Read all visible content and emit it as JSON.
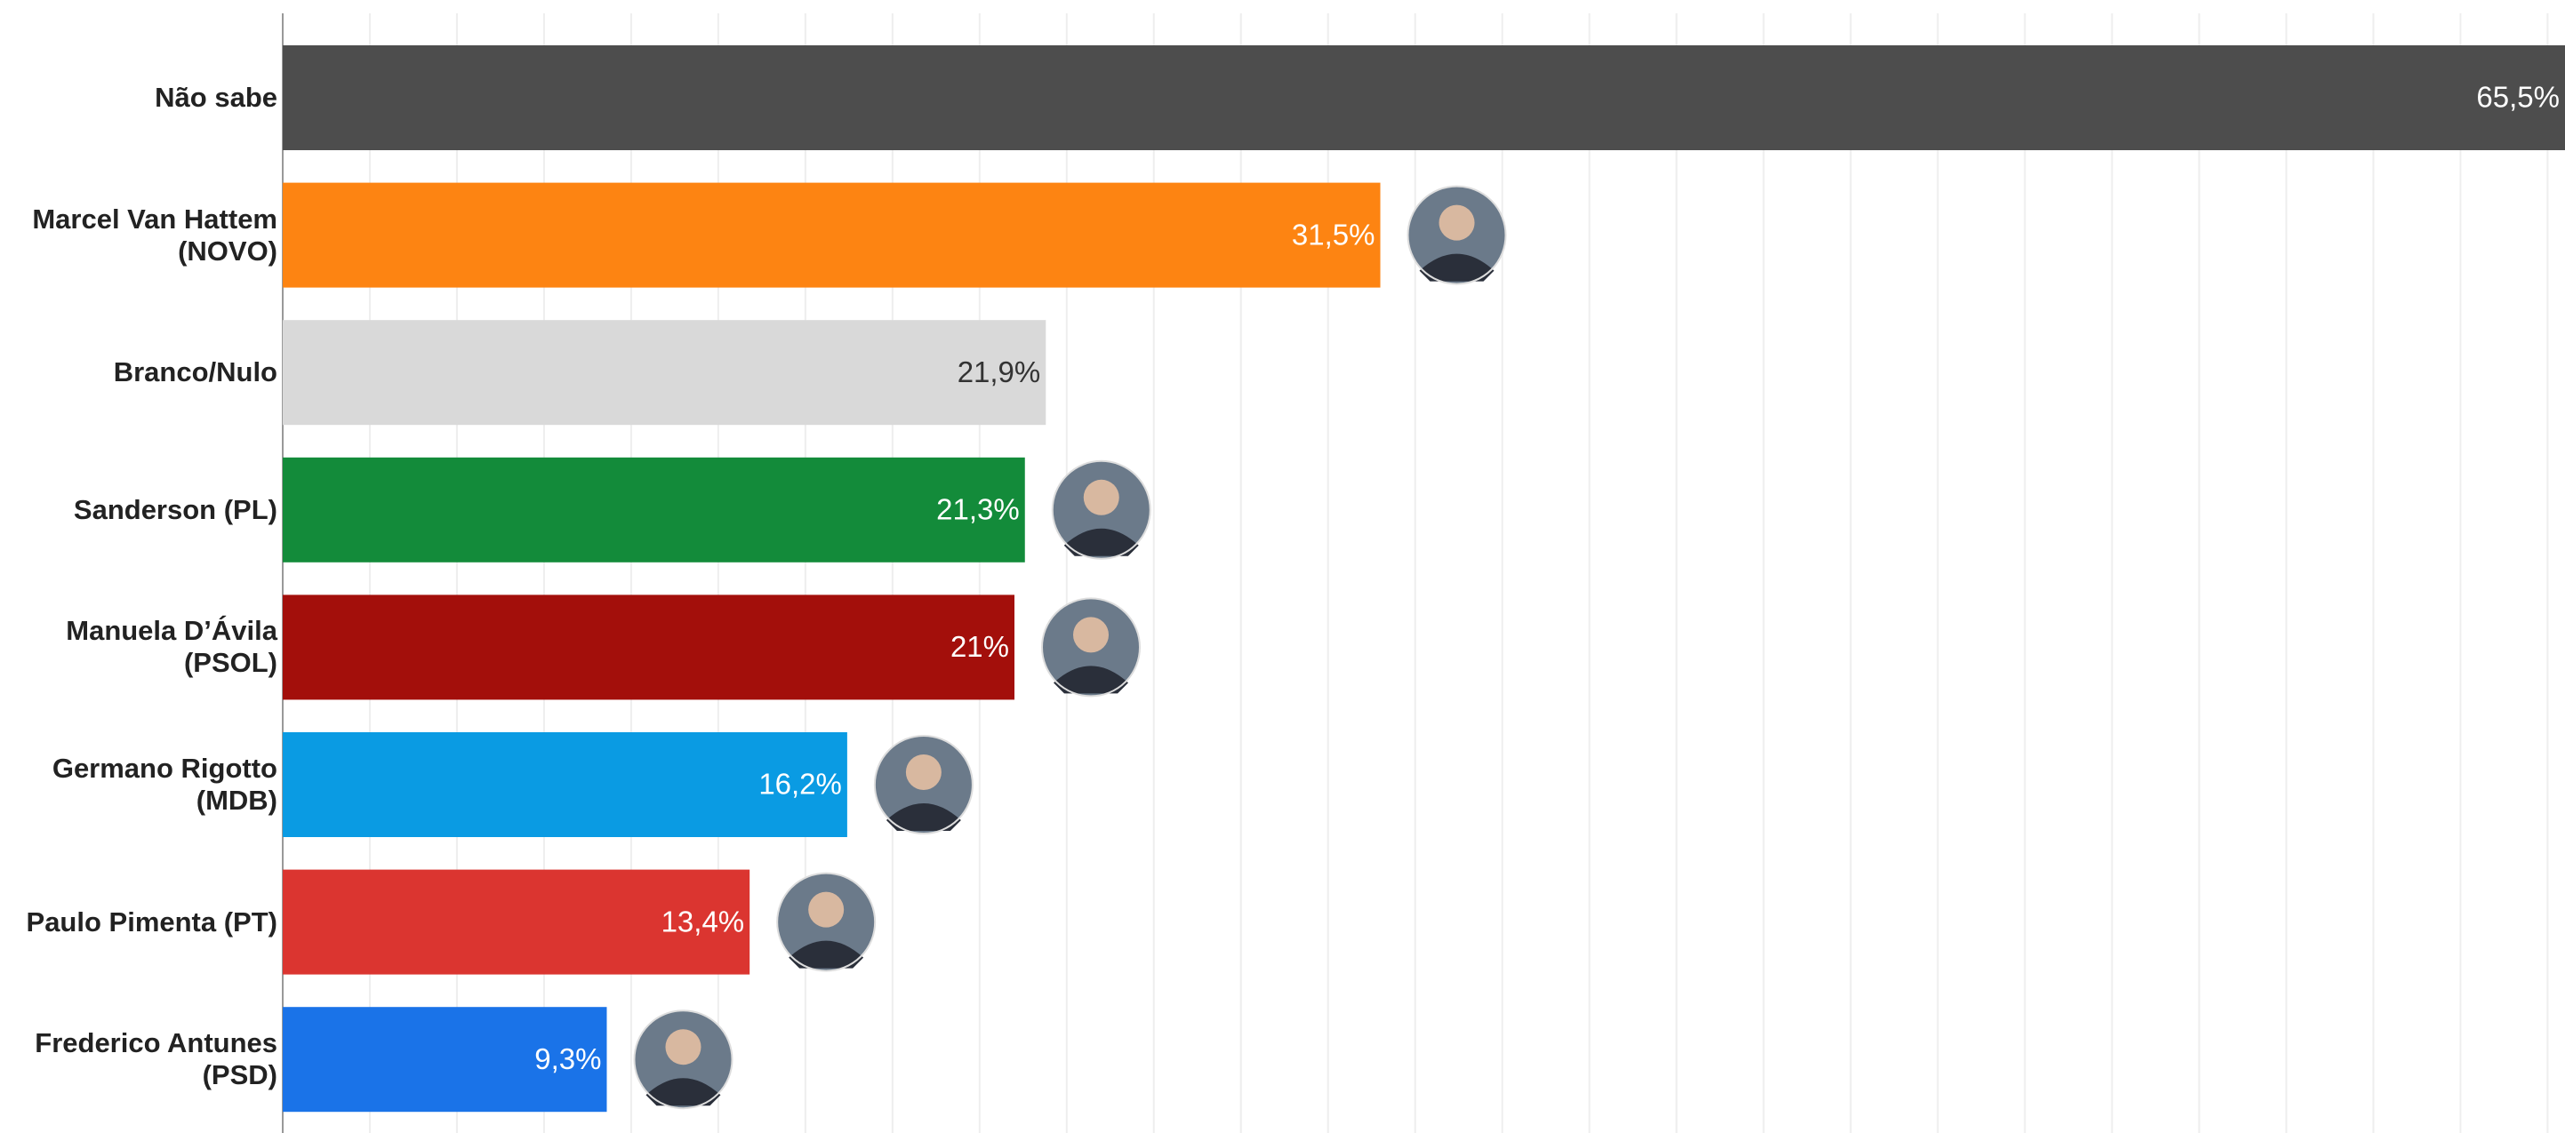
{
  "chart_data": {
    "type": "bar",
    "orientation": "horizontal",
    "categories": [
      "Não sabe",
      "Marcel Van Hattem (NOVO)",
      "Branco/Nulo",
      "Sanderson (PL)",
      "Manuela D’Ávila (PSOL)",
      "Germano Rigotto (MDB)",
      "Paulo Pimenta (PT)",
      "Frederico Antunes (PSD)"
    ],
    "values": [
      65.5,
      31.5,
      21.9,
      21.3,
      21,
      16.2,
      13.4,
      9.3
    ],
    "value_labels": [
      "65,5%",
      "31,5%",
      "21,9%",
      "21,3%",
      "21%",
      "16,2%",
      "13,4%",
      "9,3%"
    ],
    "colors": [
      "#4d4d4d",
      "#fd8412",
      "#d9d9d9",
      "#138b3a",
      "#a30f0b",
      "#0a9be3",
      "#db3530",
      "#1a73e8"
    ],
    "xlim": [
      0,
      65.5
    ],
    "xticks": [
      0,
      2.5,
      5,
      7.5,
      10,
      12.5,
      15,
      17.5,
      20,
      22.5,
      25,
      27.5,
      30,
      32.5,
      35,
      37.5,
      40,
      42.5,
      45,
      47.5,
      50,
      52.5,
      55,
      57.5,
      60,
      62.5,
      65
    ],
    "grid": true
  }
}
